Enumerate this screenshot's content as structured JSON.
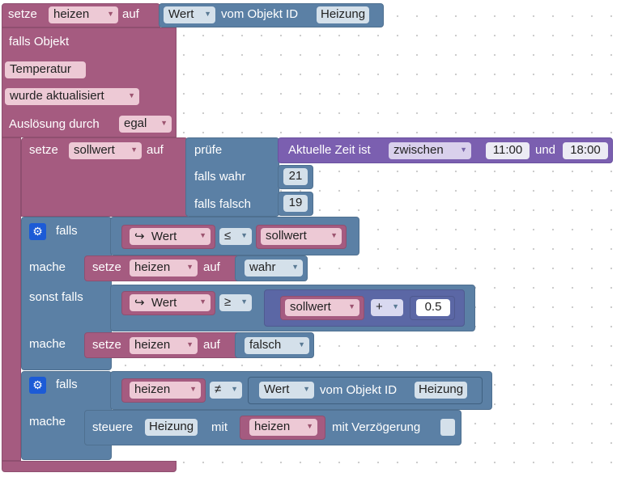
{
  "block_set": {
    "setze": "setze",
    "var": "heizen",
    "auf": "auf",
    "wert": "Wert",
    "vom_objekt_id": "vom Objekt ID",
    "objekt": "Heizung"
  },
  "trigger": {
    "falls_objekt": "falls Objekt",
    "object_name": "Temperatur",
    "event": "wurde aktualisiert",
    "ausloesung_label": "Auslösung durch",
    "ausloesung_value": "egal"
  },
  "sollwert_block": {
    "setze": "setze",
    "var": "sollwert",
    "auf": "auf",
    "pruefe": "prüfe",
    "zeit_label": "Aktuelle Zeit ist",
    "zeit_mode": "zwischen",
    "start": "11:00",
    "und": "und",
    "end": "18:00",
    "falls_wahr": "falls wahr",
    "wahr_value": "21",
    "falls_falsch": "falls falsch",
    "falsch_value": "19"
  },
  "if1": {
    "falls": "falls",
    "cond1_left": "Wert",
    "cond1_op": "≤",
    "cond1_right": "sollwert",
    "mache1": "mache",
    "set1": {
      "setze": "setze",
      "var": "heizen",
      "auf": "auf",
      "value": "wahr"
    },
    "sonst_falls": "sonst falls",
    "cond2_left": "Wert",
    "cond2_op": "≥",
    "cond2_var": "sollwert",
    "cond2_math_op": "+",
    "cond2_num": "0.5",
    "mache2": "mache",
    "set2": {
      "setze": "setze",
      "var": "heizen",
      "auf": "auf",
      "value": "falsch"
    }
  },
  "if2": {
    "falls": "falls",
    "cond_left": "heizen",
    "cond_op": "≠",
    "wert": "Wert",
    "vom_objekt_id": "vom Objekt ID",
    "objekt": "Heizung",
    "mache": "mache",
    "steuere": "steuere",
    "steuere_obj": "Heizung",
    "mit": "mit",
    "var": "heizen",
    "mit_verzoegerung": "mit Verzögerung"
  },
  "colors": {
    "variables": "#a55b80",
    "logic": "#5b80a5",
    "time": "#7b5fb0",
    "math": "#5b67a5"
  },
  "icons": {
    "gear": "gear-icon",
    "function_arrow": "↪"
  }
}
